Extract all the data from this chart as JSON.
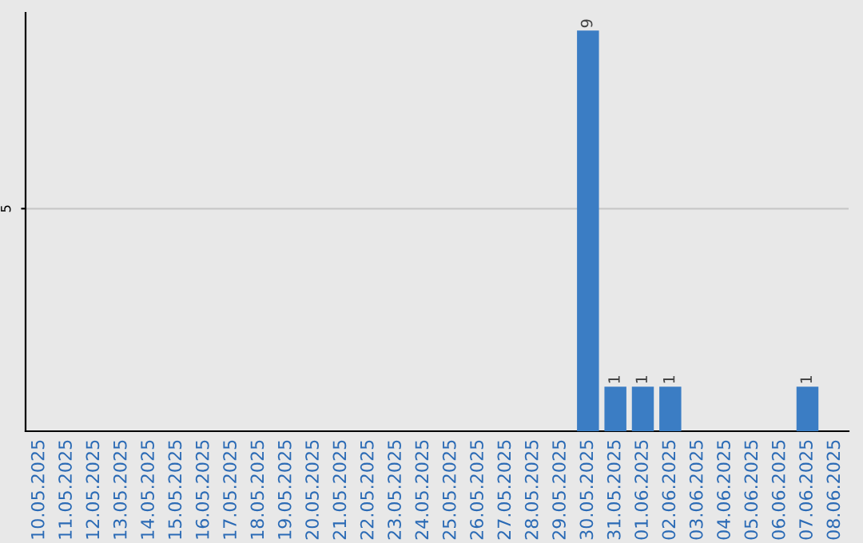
{
  "chart_data": {
    "type": "bar",
    "categories": [
      "10.05.2025",
      "11.05.2025",
      "12.05.2025",
      "13.05.2025",
      "14.05.2025",
      "15.05.2025",
      "16.05.2025",
      "17.05.2025",
      "18.05.2025",
      "19.05.2025",
      "20.05.2025",
      "21.05.2025",
      "22.05.2025",
      "23.05.2025",
      "24.05.2025",
      "25.05.2025",
      "26.05.2025",
      "27.05.2025",
      "28.05.2025",
      "29.05.2025",
      "30.05.2025",
      "31.05.2025",
      "01.06.2025",
      "02.06.2025",
      "03.06.2025",
      "04.06.2025",
      "05.06.2025",
      "06.06.2025",
      "07.06.2025",
      "08.06.2025"
    ],
    "values": [
      null,
      null,
      null,
      null,
      null,
      null,
      null,
      null,
      null,
      null,
      null,
      null,
      null,
      null,
      null,
      null,
      null,
      null,
      null,
      null,
      9,
      1,
      1,
      1,
      null,
      null,
      null,
      null,
      1,
      null
    ],
    "data_labels": true,
    "color": "#3b7dc4",
    "ylim": [
      0,
      9.4
    ],
    "yticks": [
      5
    ],
    "grid": "y",
    "legend": false
  }
}
